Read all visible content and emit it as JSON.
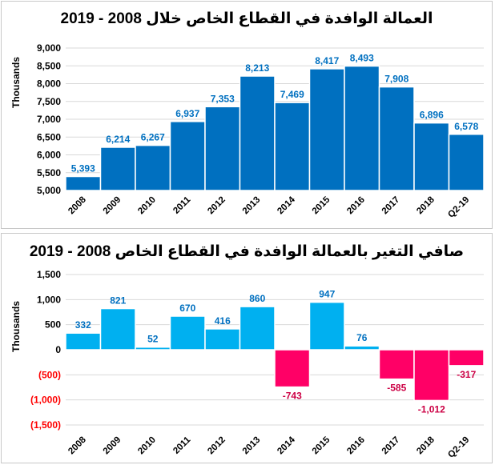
{
  "chart_data": [
    {
      "type": "bar",
      "title": "العمالة الوافدة في القطاع الخاص خلال 2008 - 2019",
      "ylabel": "Thousands",
      "xlabel": "",
      "categories": [
        "2008",
        "2009",
        "2010",
        "2011",
        "2012",
        "2013",
        "2014",
        "2015",
        "2016",
        "2017",
        "2018",
        "Q2-19"
      ],
      "values": [
        5393,
        6214,
        6267,
        6937,
        7353,
        8213,
        7469,
        8417,
        8493,
        7908,
        6896,
        6578
      ],
      "value_labels": [
        "5,393",
        "6,214",
        "6,267",
        "6,937",
        "7,353",
        "8,213",
        "7,469",
        "8,417",
        "8,493",
        "7,908",
        "6,896",
        "6,578"
      ],
      "ylim": [
        5000,
        9000
      ],
      "yticks": [
        5000,
        5500,
        6000,
        6500,
        7000,
        7500,
        8000,
        8500,
        9000
      ],
      "ytick_labels": [
        "5,000",
        "5,500",
        "6,000",
        "6,500",
        "7,000",
        "7,500",
        "8,000",
        "8,500",
        "9,000"
      ],
      "grid": true,
      "bar_color": "#0070C0",
      "label_color": "#0070C0"
    },
    {
      "type": "bar",
      "title": "صافي التغير بالعمالة الوافدة في القطاع الخاص 2008 - 2019",
      "ylabel": "Thousands",
      "xlabel": "",
      "categories": [
        "2008",
        "2009",
        "2010",
        "2011",
        "2012",
        "2013",
        "2014",
        "2015",
        "2016",
        "2017",
        "2018",
        "Q2-19"
      ],
      "values": [
        332,
        821,
        52,
        670,
        416,
        860,
        -743,
        947,
        76,
        -585,
        -1012,
        -317
      ],
      "value_labels": [
        "332",
        "821",
        "52",
        "670",
        "416",
        "860",
        "-743",
        "947",
        "76",
        "-585",
        "-1,012",
        "-317"
      ],
      "ylim": [
        -1500,
        1500
      ],
      "yticks": [
        -1500,
        -1000,
        -500,
        0,
        500,
        1000,
        1500
      ],
      "ytick_labels": [
        "(1,500)",
        "(1,000)",
        "(500)",
        "0",
        "500",
        "1,000",
        "1,500"
      ],
      "grid": true,
      "pos_color": "#00B0F0",
      "neg_color": "#FF0066",
      "pos_label_color": "#0070C0",
      "neg_label_color": "#CC0044",
      "neg_tick_color": "#FF0000"
    }
  ]
}
